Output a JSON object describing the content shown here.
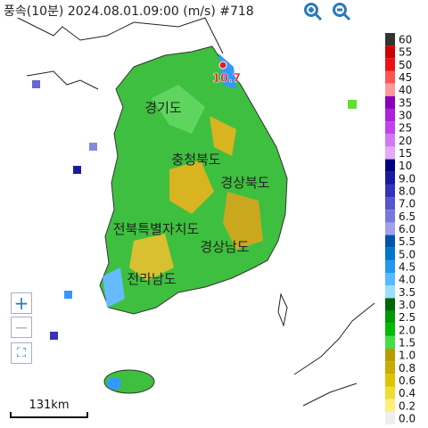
{
  "header": {
    "title": "풍속(10분) 2024.08.01.09:00 (m/s) #718"
  },
  "map": {
    "marker_value": "10.7",
    "labels": [
      "경기도",
      "충청북도",
      "경상북도",
      "전북특별자치도",
      "경상남도",
      "전라남도"
    ]
  },
  "scale_bar": "131km",
  "legend": {
    "items": [
      {
        "label": "60",
        "color": "#333333"
      },
      {
        "label": "55",
        "color": "#cc0000"
      },
      {
        "label": "50",
        "color": "#ee1111"
      },
      {
        "label": "45",
        "color": "#ff5555"
      },
      {
        "label": "40",
        "color": "#ff9999"
      },
      {
        "label": "35",
        "color": "#8800bb"
      },
      {
        "label": "30",
        "color": "#aa22dd"
      },
      {
        "label": "25",
        "color": "#c044ee"
      },
      {
        "label": "20",
        "color": "#d477f5"
      },
      {
        "label": "15",
        "color": "#e6a8fa"
      },
      {
        "label": "10",
        "color": "#000080"
      },
      {
        "label": "9.0",
        "color": "#1a1aa0"
      },
      {
        "label": "8.0",
        "color": "#3333bb"
      },
      {
        "label": "7.0",
        "color": "#5555cc"
      },
      {
        "label": "6.5",
        "color": "#7777dd"
      },
      {
        "label": "6.0",
        "color": "#a0a0ee"
      },
      {
        "label": "5.5",
        "color": "#0055aa"
      },
      {
        "label": "5.0",
        "color": "#0077cc"
      },
      {
        "label": "4.5",
        "color": "#2299ee"
      },
      {
        "label": "4.0",
        "color": "#55bbff"
      },
      {
        "label": "3.5",
        "color": "#99ddff"
      },
      {
        "label": "3.0",
        "color": "#006600"
      },
      {
        "label": "2.5",
        "color": "#009900"
      },
      {
        "label": "2.0",
        "color": "#00bb00"
      },
      {
        "label": "1.5",
        "color": "#44dd44"
      },
      {
        "label": "1.0",
        "color": "#b89a00"
      },
      {
        "label": "0.8",
        "color": "#ccaa00"
      },
      {
        "label": "0.6",
        "color": "#ddc400"
      },
      {
        "label": "0.4",
        "color": "#eedd33"
      },
      {
        "label": "0.2",
        "color": "#ffee77"
      },
      {
        "label": "0.0",
        "color": "#eeeeee"
      }
    ]
  }
}
